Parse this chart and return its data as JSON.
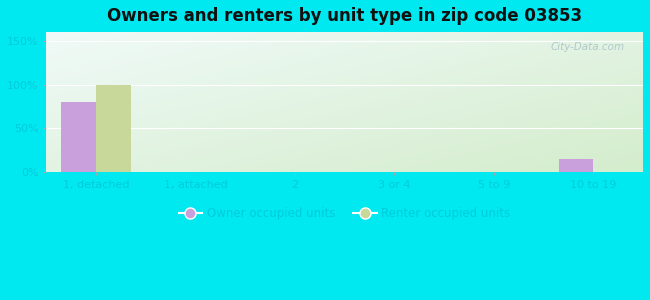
{
  "title": "Owners and renters by unit type in zip code 03853",
  "categories": [
    "1, detached",
    "1, attached",
    "2",
    "3 or 4",
    "5 to 9",
    "10 to 19"
  ],
  "owner_values": [
    80,
    0,
    0,
    0,
    0,
    15
  ],
  "renter_values": [
    100,
    0,
    0,
    0,
    0,
    0
  ],
  "owner_color": "#c9a0dc",
  "renter_color": "#c8d89a",
  "background_outer": "#00e8f0",
  "background_plot_top_left": "#f0faf8",
  "background_plot_bottom_right": "#d4edcc",
  "yticks": [
    0,
    50,
    100,
    150
  ],
  "ytick_labels": [
    "0%",
    "50%",
    "100%",
    "150%"
  ],
  "ylim": [
    0,
    160
  ],
  "bar_width": 0.35,
  "legend_owner": "Owner occupied units",
  "legend_renter": "Renter occupied units",
  "title_fontsize": 12,
  "tick_fontsize": 8,
  "legend_fontsize": 8.5,
  "tick_color": "#00ccdd",
  "watermark": "City-Data.com"
}
